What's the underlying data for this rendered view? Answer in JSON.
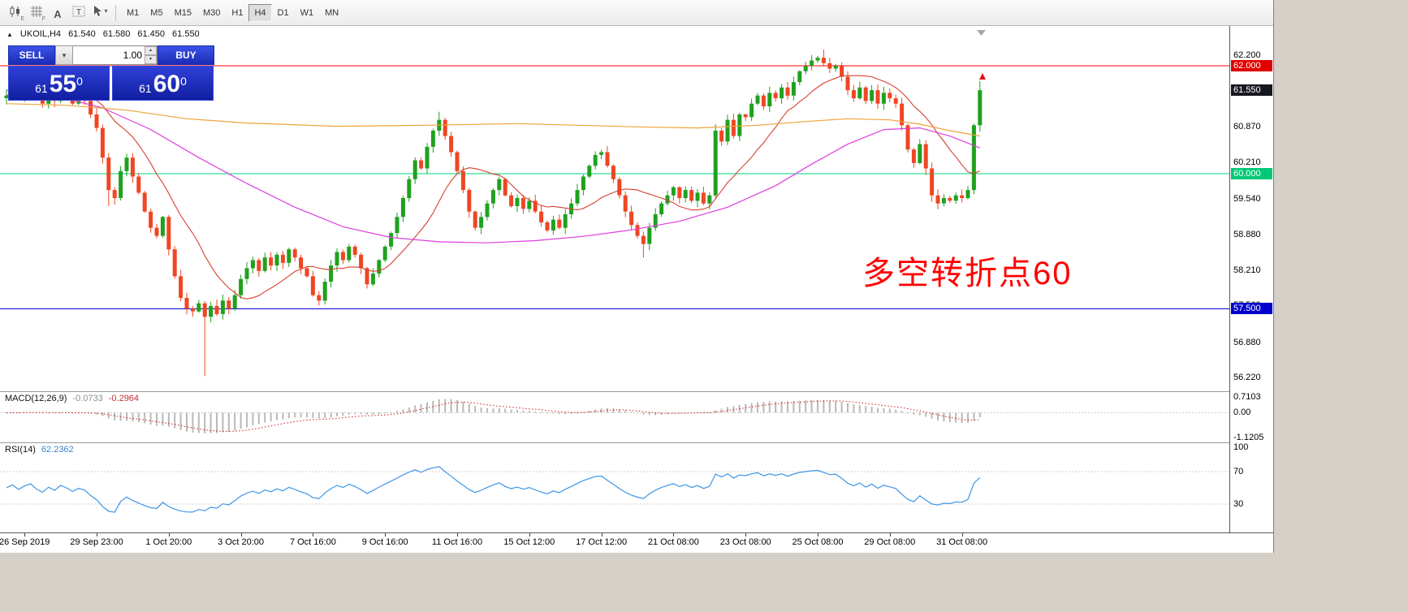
{
  "colors": {
    "btn_blue1": "#3a52e8",
    "btn_blue2": "#1b2cb6",
    "panel_blue1": "#2f40d8",
    "panel_blue2": "#101fa0",
    "annotation_red": "#ff0000"
  },
  "toolbar": {
    "icons": [
      {
        "name": "candlestick-chart-icon",
        "kind": "candles",
        "badge": "E"
      },
      {
        "name": "grid-icon",
        "kind": "grid",
        "badge": "F"
      },
      {
        "name": "text-tool-icon",
        "kind": "A",
        "glyph": "A"
      },
      {
        "name": "text-label-tool-icon",
        "kind": "T",
        "glyph": "T"
      },
      {
        "name": "cursor-tool-icon",
        "kind": "cursor",
        "dropdown": "▾"
      }
    ],
    "timeframes": [
      {
        "label": "M1"
      },
      {
        "label": "M5"
      },
      {
        "label": "M15"
      },
      {
        "label": "M30"
      },
      {
        "label": "H1"
      },
      {
        "label": "H4",
        "active": true
      },
      {
        "label": "D1"
      },
      {
        "label": "W1"
      },
      {
        "label": "MN"
      }
    ]
  },
  "chart": {
    "header": {
      "collapse": "▲",
      "symbol": "UKOIL,H4",
      "open": "61.540",
      "high": "61.580",
      "low": "61.450",
      "close": "61.550"
    },
    "trade_panel": {
      "sell_label": "SELL",
      "buy_label": "BUY",
      "volume": "1.00",
      "dropdown_glyph": "▾",
      "spin_up": "▲",
      "spin_down": "▼",
      "sell_price": {
        "prefix": "61",
        "big": "55",
        "sup": "0"
      },
      "buy_price": {
        "prefix": "61",
        "big": "60",
        "sup": "0"
      }
    },
    "annotation": {
      "text": "多空转折点60",
      "color": "#ff0000"
    },
    "price_axis": {
      "labels": [
        {
          "price": 62.2,
          "text": "62.200"
        },
        {
          "price": 62.0,
          "text": "62.000",
          "badge": "#e00000",
          "fg": "#ffffff"
        },
        {
          "price": 61.55,
          "text": "61.550",
          "badge": "#17171f",
          "fg": "#ffffff"
        },
        {
          "price": 60.87,
          "text": "60.870"
        },
        {
          "price": 60.21,
          "text": "60.210"
        },
        {
          "price": 60.0,
          "text": "60.000",
          "badge": "#00c878",
          "fg": "#ffffff"
        },
        {
          "price": 59.54,
          "text": "59.540"
        },
        {
          "price": 58.88,
          "text": "58.880"
        },
        {
          "price": 58.21,
          "text": "58.210"
        },
        {
          "price": 57.56,
          "text": "57.560"
        },
        {
          "price": 57.5,
          "text": "57.500",
          "badge": "#0000cc",
          "fg": "#ffffff"
        },
        {
          "price": 56.88,
          "text": "56.880"
        },
        {
          "price": 56.22,
          "text": "56.220"
        }
      ]
    }
  },
  "chart_data": {
    "type": "candlestick",
    "symbol": "UKOIL",
    "timeframe": "H4",
    "colors": {
      "bull": "#1fa11f",
      "bear": "#ef4623"
    },
    "y_axis": {
      "min": 55.97,
      "max": 62.74
    },
    "closes": [
      61.45,
      61.55,
      61.4,
      61.52,
      61.6,
      61.42,
      61.3,
      61.48,
      61.35,
      61.55,
      61.45,
      61.3,
      61.42,
      61.35,
      61.1,
      60.85,
      60.3,
      59.7,
      59.55,
      60.05,
      60.3,
      59.95,
      59.65,
      59.3,
      59.0,
      58.85,
      59.2,
      58.6,
      58.1,
      57.7,
      57.5,
      57.45,
      57.6,
      57.35,
      57.55,
      57.4,
      57.65,
      57.5,
      57.75,
      58.05,
      58.25,
      58.4,
      58.2,
      58.45,
      58.3,
      58.5,
      58.35,
      58.6,
      58.45,
      58.25,
      58.1,
      57.75,
      57.65,
      58.0,
      58.3,
      58.55,
      58.4,
      58.65,
      58.5,
      58.25,
      57.95,
      58.15,
      58.4,
      58.65,
      58.9,
      59.2,
      59.55,
      59.9,
      60.25,
      60.1,
      60.5,
      60.8,
      61.0,
      60.7,
      60.4,
      60.05,
      59.7,
      59.3,
      59.0,
      59.2,
      59.45,
      59.7,
      59.9,
      59.6,
      59.4,
      59.55,
      59.35,
      59.5,
      59.3,
      59.1,
      58.95,
      59.15,
      59.0,
      59.25,
      59.45,
      59.7,
      59.95,
      60.15,
      60.35,
      60.4,
      60.15,
      59.9,
      59.6,
      59.3,
      59.05,
      58.85,
      58.7,
      59.0,
      59.25,
      59.45,
      59.6,
      59.75,
      59.55,
      59.7,
      59.5,
      59.65,
      59.45,
      59.6,
      60.8,
      60.6,
      61.0,
      60.7,
      61.1,
      61.05,
      61.3,
      61.45,
      61.25,
      61.5,
      61.4,
      61.6,
      61.45,
      61.7,
      61.9,
      62.0,
      62.1,
      62.15,
      62.05,
      61.95,
      62.0,
      61.8,
      61.55,
      61.4,
      61.6,
      61.35,
      61.55,
      61.3,
      61.5,
      61.4,
      61.3,
      60.9,
      60.45,
      60.2,
      60.55,
      60.1,
      59.6,
      59.45,
      59.55,
      59.5,
      59.6,
      59.55,
      59.7,
      60.9,
      61.55
    ],
    "special_wicks": {
      "17": {
        "low": 59.4
      },
      "33": {
        "low": 56.25
      },
      "72": {
        "high": 61.15
      },
      "106": {
        "low": 58.45
      },
      "136": {
        "high": 62.3
      },
      "162": {
        "high": 61.72
      }
    },
    "hlines": [
      {
        "price": 62.0,
        "label": "62.000",
        "color": "#ff0000"
      },
      {
        "price": 60.0,
        "label": "60.000",
        "color": "#00d87c"
      },
      {
        "price": 57.5,
        "label": "57.500",
        "color": "#0000d0"
      }
    ],
    "moving_averages": [
      {
        "name": "ma-fast-red",
        "color": "#d8402e",
        "period": 13
      },
      {
        "name": "ma-mid-magenta",
        "color": "#dd3ddd",
        "points": [
          [
            0,
            61.55
          ],
          [
            8,
            61.45
          ],
          [
            16,
            61.22
          ],
          [
            24,
            60.82
          ],
          [
            32,
            60.3
          ],
          [
            40,
            59.82
          ],
          [
            48,
            59.38
          ],
          [
            56,
            59.02
          ],
          [
            64,
            58.82
          ],
          [
            72,
            58.74
          ],
          [
            80,
            58.72
          ],
          [
            88,
            58.76
          ],
          [
            96,
            58.84
          ],
          [
            104,
            58.96
          ],
          [
            112,
            59.12
          ],
          [
            120,
            59.38
          ],
          [
            128,
            59.78
          ],
          [
            134,
            60.18
          ],
          [
            140,
            60.55
          ],
          [
            146,
            60.82
          ],
          [
            152,
            60.85
          ],
          [
            157,
            60.7
          ],
          [
            162,
            60.48
          ]
        ]
      },
      {
        "name": "ma-slow-orange",
        "color": "#efa33a",
        "points": [
          [
            0,
            61.3
          ],
          [
            10,
            61.27
          ],
          [
            20,
            61.18
          ],
          [
            30,
            61.02
          ],
          [
            40,
            60.94
          ],
          [
            55,
            60.88
          ],
          [
            70,
            60.9
          ],
          [
            85,
            60.93
          ],
          [
            95,
            60.9
          ],
          [
            105,
            60.87
          ],
          [
            115,
            60.85
          ],
          [
            125,
            60.9
          ],
          [
            133,
            60.97
          ],
          [
            140,
            61.02
          ],
          [
            147,
            61.0
          ],
          [
            152,
            60.92
          ],
          [
            157,
            60.8
          ],
          [
            162,
            60.7
          ]
        ]
      }
    ],
    "x_axis": {
      "labels": [
        {
          "idx": 3,
          "text": "26 Sep 2019"
        },
        {
          "idx": 15,
          "text": "29 Sep 23:00"
        },
        {
          "idx": 27,
          "text": "1 Oct 20:00"
        },
        {
          "idx": 39,
          "text": "3 Oct 20:00"
        },
        {
          "idx": 51,
          "text": "7 Oct 16:00"
        },
        {
          "idx": 63,
          "text": "9 Oct 16:00"
        },
        {
          "idx": 75,
          "text": "11 Oct 16:00"
        },
        {
          "idx": 87,
          "text": "15 Oct 12:00"
        },
        {
          "idx": 99,
          "text": "17 Oct 12:00"
        },
        {
          "idx": 111,
          "text": "21 Oct 08:00"
        },
        {
          "idx": 123,
          "text": "23 Oct 08:00"
        },
        {
          "idx": 135,
          "text": "25 Oct 08:00"
        },
        {
          "idx": 147,
          "text": "29 Oct 08:00"
        },
        {
          "idx": 159,
          "text": "31 Oct 08:00"
        }
      ]
    },
    "indicators": [
      {
        "label": "MACD(12,26,9)",
        "values_text": [
          "-0.0733",
          "-0.2964"
        ],
        "range": {
          "min": -1.1205,
          "max": 0.7103
        },
        "axis": [
          {
            "text": "0.7103",
            "v": 0.7103
          },
          {
            "text": "0.00",
            "v": 0
          },
          {
            "text": "-1.1205",
            "v": -1.1205
          }
        ],
        "colors": {
          "histogram": "#b9b9b9",
          "signal": "#cc2020"
        }
      },
      {
        "label": "RSI(14)",
        "value_text": "62.2362",
        "range": {
          "min": 0,
          "max": 100
        },
        "levels": [
          70,
          30
        ],
        "axis": [
          {
            "text": "100",
            "v": 100
          },
          {
            "text": "70",
            "v": 70
          },
          {
            "text": "30",
            "v": 30
          }
        ],
        "colors": {
          "line": "#3d95e8"
        }
      }
    ]
  }
}
